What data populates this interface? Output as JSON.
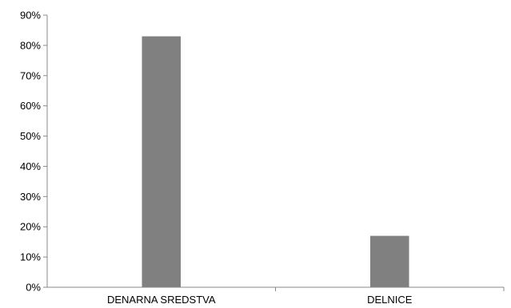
{
  "chart_data": {
    "type": "bar",
    "categories": [
      "DENARNA SREDSTVA",
      "DELNICE"
    ],
    "values": [
      83,
      17
    ],
    "ylim": [
      0,
      90
    ],
    "ytick_values": [
      0,
      10,
      20,
      30,
      40,
      50,
      60,
      70,
      80,
      90
    ],
    "ytick_labels": [
      "0%",
      "10%",
      "20%",
      "30%",
      "40%",
      "50%",
      "60%",
      "70%",
      "80%",
      "90%"
    ],
    "title": "",
    "xlabel": "",
    "ylabel": "",
    "grid": false,
    "legend": "none",
    "bar_color": "#808080",
    "axis_color": "#898989"
  }
}
